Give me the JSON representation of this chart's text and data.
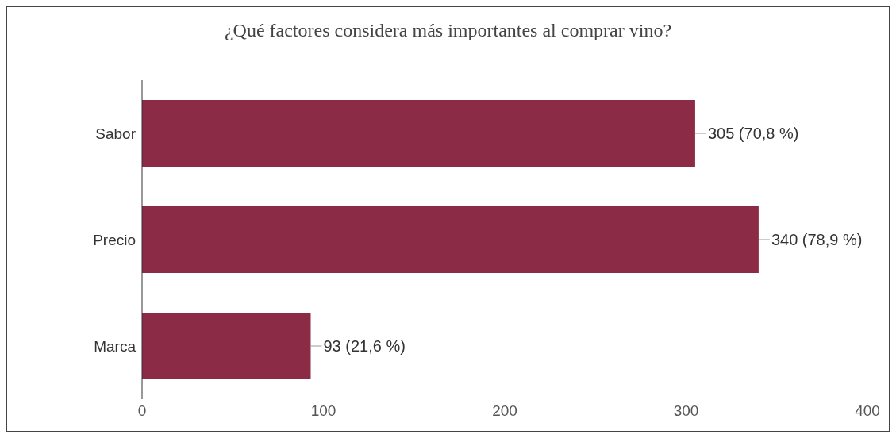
{
  "chart_data": {
    "type": "bar",
    "orientation": "horizontal",
    "title": "¿Qué factores considera más importantes al comprar vino?",
    "categories": [
      "Sabor",
      "Precio",
      "Marca"
    ],
    "values": [
      305,
      340,
      93
    ],
    "value_labels": [
      "305 (70,8 %)",
      "340 (78,9 %)",
      "93 (21,6 %)"
    ],
    "color": "#8b2b46",
    "xlim": [
      0,
      400
    ],
    "xticks": [
      0,
      100,
      200,
      300,
      400
    ],
    "grid": false,
    "legend": false
  }
}
